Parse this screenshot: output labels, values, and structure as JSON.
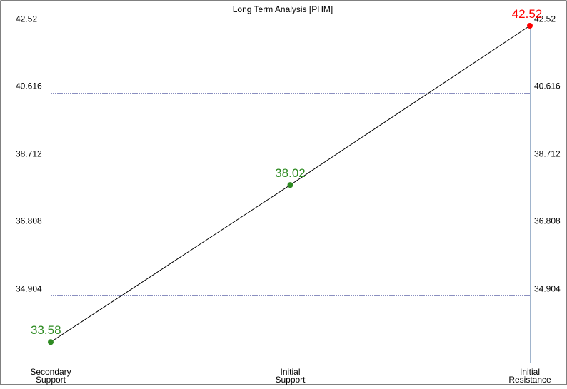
{
  "chart_data": {
    "type": "line",
    "title": "Long Term Analysis [PHM]",
    "categories": [
      "Secondary Support",
      "Initial Support",
      "Initial Resistance"
    ],
    "category_label_lines": [
      [
        "Secondary",
        "Support"
      ],
      [
        "Initial",
        "Support"
      ],
      [
        "Initial",
        "Resistance"
      ]
    ],
    "values": [
      33.58,
      38.02,
      42.52
    ],
    "value_labels": [
      "33.58",
      "38.02",
      "42.52"
    ],
    "point_colors": [
      "#2e8b22",
      "#2e8b22",
      "#ff0000"
    ],
    "yticks": [
      "42.52",
      "40.616",
      "38.712",
      "36.808",
      "34.904"
    ],
    "ytick_values": [
      42.52,
      40.616,
      38.712,
      36.808,
      34.904
    ],
    "ylim": [
      33.0,
      42.52
    ],
    "grid": true,
    "line_color": "#000000",
    "grid_color": "#8a8fc0",
    "axis_color": "#a0b4cc"
  }
}
